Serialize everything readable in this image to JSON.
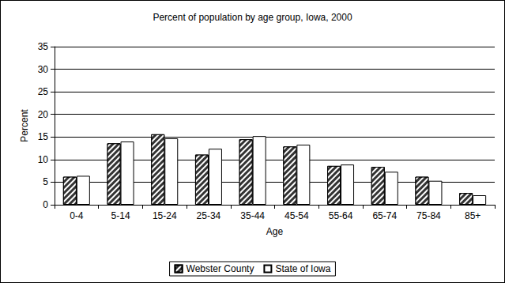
{
  "chart_data": {
    "type": "bar",
    "title": "Percent of population by age group, Iowa, 2000",
    "x_label": "Age",
    "y_label": "Percent",
    "categories": [
      "0-4",
      "5-14",
      "15-24",
      "25-34",
      "35-44",
      "45-54",
      "55-64",
      "65-74",
      "75-84",
      "85+"
    ],
    "series": [
      {
        "name": "Webster County",
        "color": "#333333",
        "values": [
          6.2,
          13.6,
          15.6,
          11.1,
          14.5,
          12.9,
          8.6,
          8.4,
          6.2,
          2.6
        ]
      },
      {
        "name": "State of Iowa",
        "color": "#ffffff",
        "values": [
          6.4,
          14.0,
          14.7,
          12.4,
          15.2,
          13.3,
          8.9,
          7.3,
          5.3,
          2.1
        ]
      }
    ],
    "ylim": [
      0,
      35
    ],
    "yticks": [
      0,
      5,
      10,
      15,
      20,
      25,
      30,
      35
    ],
    "grid": true,
    "legend": "bottom"
  }
}
